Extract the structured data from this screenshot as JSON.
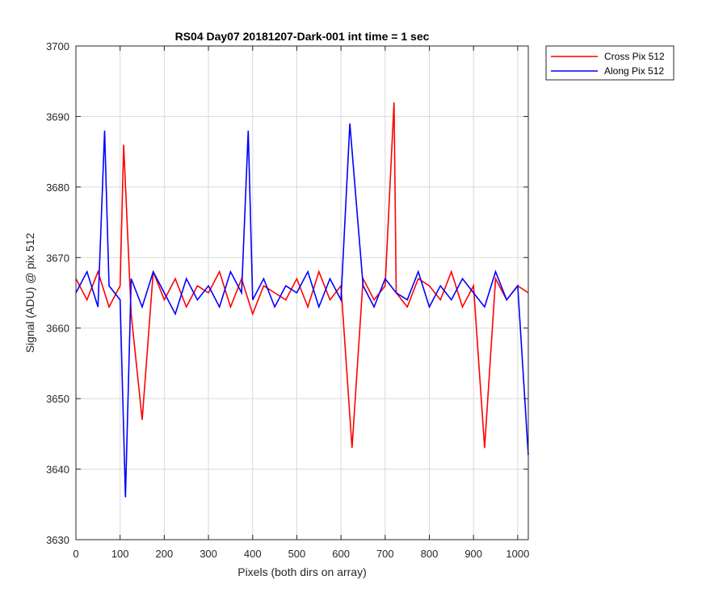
{
  "chart_data": {
    "type": "line",
    "title": "RS04 Day07 20181207-Dark-001 int time = 1 sec",
    "xlabel": "Pixels (both dirs on array)",
    "ylabel": "Signal (ADU) @ pix 512",
    "xlim": [
      0,
      1024
    ],
    "ylim": [
      3630,
      3700
    ],
    "xticks": [
      0,
      100,
      200,
      300,
      400,
      500,
      600,
      700,
      800,
      900,
      1000
    ],
    "yticks": [
      3630,
      3640,
      3650,
      3660,
      3670,
      3680,
      3690,
      3700
    ],
    "grid": true,
    "legend_position": "outside-top-right",
    "series": [
      {
        "name": "Cross Pix 512",
        "color": "#ff0000",
        "x": [
          0,
          25,
          50,
          75,
          100,
          108,
          125,
          150,
          175,
          200,
          225,
          250,
          275,
          300,
          325,
          350,
          375,
          400,
          425,
          450,
          475,
          500,
          525,
          550,
          575,
          600,
          625,
          650,
          675,
          700,
          720,
          725,
          750,
          775,
          800,
          825,
          850,
          875,
          900,
          925,
          950,
          975,
          1000,
          1024
        ],
        "values": [
          3667,
          3664,
          3668,
          3663,
          3666,
          3686,
          3662,
          3647,
          3668,
          3664,
          3667,
          3663,
          3666,
          3665,
          3668,
          3663,
          3667,
          3662,
          3666,
          3665,
          3664,
          3667,
          3663,
          3668,
          3664,
          3666,
          3643,
          3667,
          3664,
          3666,
          3692,
          3665,
          3663,
          3667,
          3666,
          3664,
          3668,
          3663,
          3666,
          3643,
          3667,
          3664,
          3666,
          3665
        ]
      },
      {
        "name": "Along Pix 512",
        "color": "#0000ff",
        "x": [
          0,
          25,
          50,
          65,
          75,
          100,
          112,
          125,
          150,
          175,
          200,
          225,
          250,
          275,
          300,
          325,
          350,
          375,
          390,
          400,
          425,
          450,
          475,
          500,
          525,
          550,
          575,
          600,
          620,
          650,
          675,
          700,
          725,
          750,
          775,
          800,
          825,
          850,
          875,
          900,
          925,
          950,
          975,
          1000,
          1024
        ],
        "values": [
          3665,
          3668,
          3663,
          3688,
          3666,
          3664,
          3636,
          3667,
          3663,
          3668,
          3665,
          3662,
          3667,
          3664,
          3666,
          3663,
          3668,
          3665,
          3688,
          3664,
          3667,
          3663,
          3666,
          3665,
          3668,
          3663,
          3667,
          3664,
          3689,
          3666,
          3663,
          3667,
          3665,
          3664,
          3668,
          3663,
          3666,
          3664,
          3667,
          3665,
          3663,
          3668,
          3664,
          3666,
          3642
        ]
      }
    ]
  }
}
